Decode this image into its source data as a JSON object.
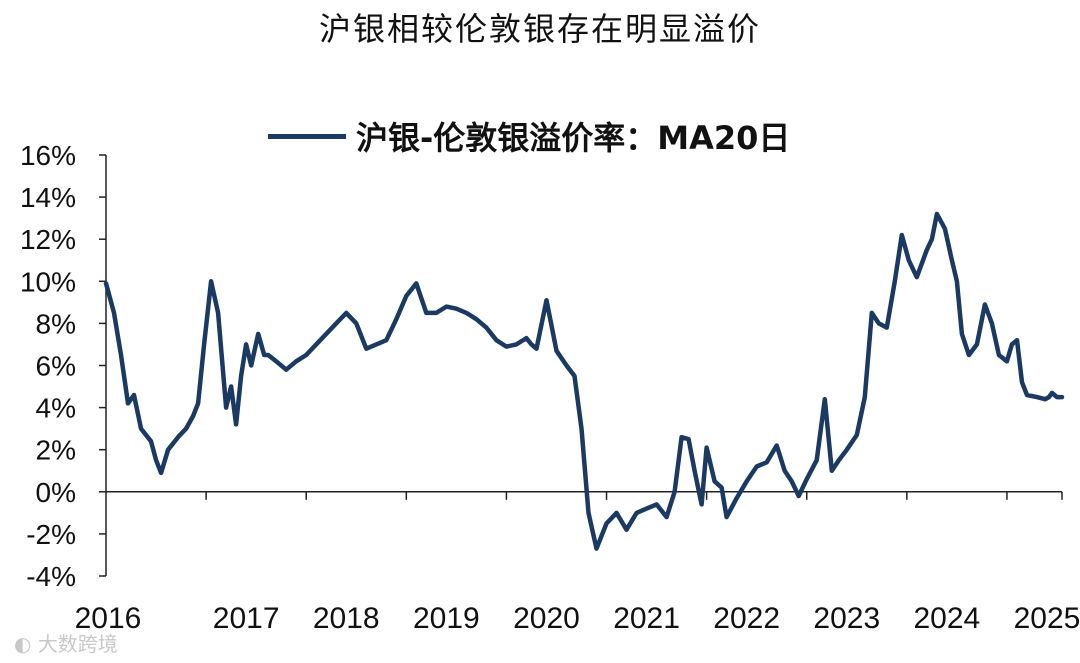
{
  "chart_data": {
    "type": "line",
    "title": "沪银相较伦敦银存在明显溢价",
    "legend": "沪银-伦敦银溢价率：MA20日",
    "ylabel": "",
    "xlabel": "",
    "y_tick_labels": [
      "16%",
      "14%",
      "12%",
      "10%",
      "8%",
      "6%",
      "4%",
      "2%",
      "0%",
      "-2%",
      "-4%"
    ],
    "y_ticks": [
      16,
      14,
      12,
      10,
      8,
      6,
      4,
      2,
      0,
      -2,
      -4
    ],
    "ylim": [
      -4,
      16
    ],
    "x_tick_labels": [
      "2016",
      "2017",
      "2018",
      "2019",
      "2020",
      "2021",
      "2022",
      "2023",
      "2024",
      "2025"
    ],
    "xlim": [
      2016.0,
      2025.55
    ],
    "color": "#1b3a63",
    "series": [
      {
        "name": "沪银-伦敦银溢价率：MA20日",
        "x": [
          2016.0,
          2016.08,
          2016.15,
          2016.22,
          2016.28,
          2016.35,
          2016.45,
          2016.5,
          2016.55,
          2016.62,
          2016.72,
          2016.8,
          2016.87,
          2016.92,
          2016.98,
          2017.05,
          2017.12,
          2017.2,
          2017.25,
          2017.3,
          2017.35,
          2017.4,
          2017.45,
          2017.52,
          2017.58,
          2017.62,
          2017.7,
          2017.8,
          2017.9,
          2018.0,
          2018.1,
          2018.2,
          2018.3,
          2018.4,
          2018.5,
          2018.6,
          2018.7,
          2018.8,
          2018.9,
          2019.0,
          2019.1,
          2019.2,
          2019.3,
          2019.4,
          2019.5,
          2019.6,
          2019.7,
          2019.8,
          2019.9,
          2020.0,
          2020.1,
          2020.2,
          2020.25,
          2020.3,
          2020.4,
          2020.5,
          2020.6,
          2020.68,
          2020.75,
          2020.82,
          2020.9,
          2021.0,
          2021.1,
          2021.2,
          2021.3,
          2021.4,
          2021.5,
          2021.6,
          2021.68,
          2021.75,
          2021.82,
          2021.88,
          2021.95,
          2022.0,
          2022.08,
          2022.15,
          2022.2,
          2022.3,
          2022.4,
          2022.5,
          2022.6,
          2022.7,
          2022.78,
          2022.85,
          2022.92,
          2023.0,
          2023.1,
          2023.18,
          2023.25,
          2023.32,
          2023.4,
          2023.5,
          2023.58,
          2023.65,
          2023.72,
          2023.8,
          2023.88,
          2023.95,
          2024.02,
          2024.1,
          2024.2,
          2024.25,
          2024.3,
          2024.38,
          2024.45,
          2024.5,
          2024.55,
          2024.62,
          2024.7,
          2024.78,
          2024.85,
          2024.92,
          2025.0,
          2025.05,
          2025.1,
          2025.15,
          2025.2,
          2025.3,
          2025.38,
          2025.42,
          2025.45,
          2025.5,
          2025.55
        ],
        "values": [
          9.9,
          8.5,
          6.5,
          4.2,
          4.6,
          3.0,
          2.4,
          1.5,
          0.9,
          2.0,
          2.6,
          3.0,
          3.6,
          4.2,
          7.0,
          10.0,
          8.5,
          4.0,
          5.0,
          3.2,
          5.5,
          7.0,
          6.0,
          7.5,
          6.5,
          6.5,
          6.2,
          5.8,
          6.2,
          6.5,
          7.0,
          7.5,
          8.0,
          8.5,
          8.0,
          6.8,
          7.0,
          7.2,
          8.2,
          9.3,
          9.9,
          8.5,
          8.5,
          8.8,
          8.7,
          8.5,
          8.2,
          7.8,
          7.2,
          6.9,
          7.0,
          7.3,
          7.0,
          6.8,
          9.1,
          6.7,
          6.0,
          5.5,
          3.0,
          -1.0,
          -2.7,
          -1.5,
          -1.0,
          -1.8,
          -1.0,
          -0.8,
          -0.6,
          -1.2,
          0.0,
          2.6,
          2.5,
          1.0,
          -0.6,
          2.1,
          0.5,
          0.2,
          -1.2,
          -0.3,
          0.5,
          1.2,
          1.4,
          2.2,
          1.0,
          0.5,
          -0.2,
          0.6,
          1.5,
          4.4,
          1.0,
          1.5,
          2.0,
          2.7,
          4.5,
          8.5,
          8.0,
          7.8,
          10.0,
          12.2,
          11.0,
          10.2,
          11.5,
          12.0,
          13.2,
          12.5,
          11.0,
          10.0,
          7.5,
          6.5,
          7.0,
          8.9,
          8.0,
          6.5,
          6.2,
          7.0,
          7.2,
          5.2,
          4.6,
          4.5,
          4.4,
          4.5,
          4.7,
          4.5,
          4.5
        ]
      }
    ]
  },
  "watermark": "大数跨境"
}
